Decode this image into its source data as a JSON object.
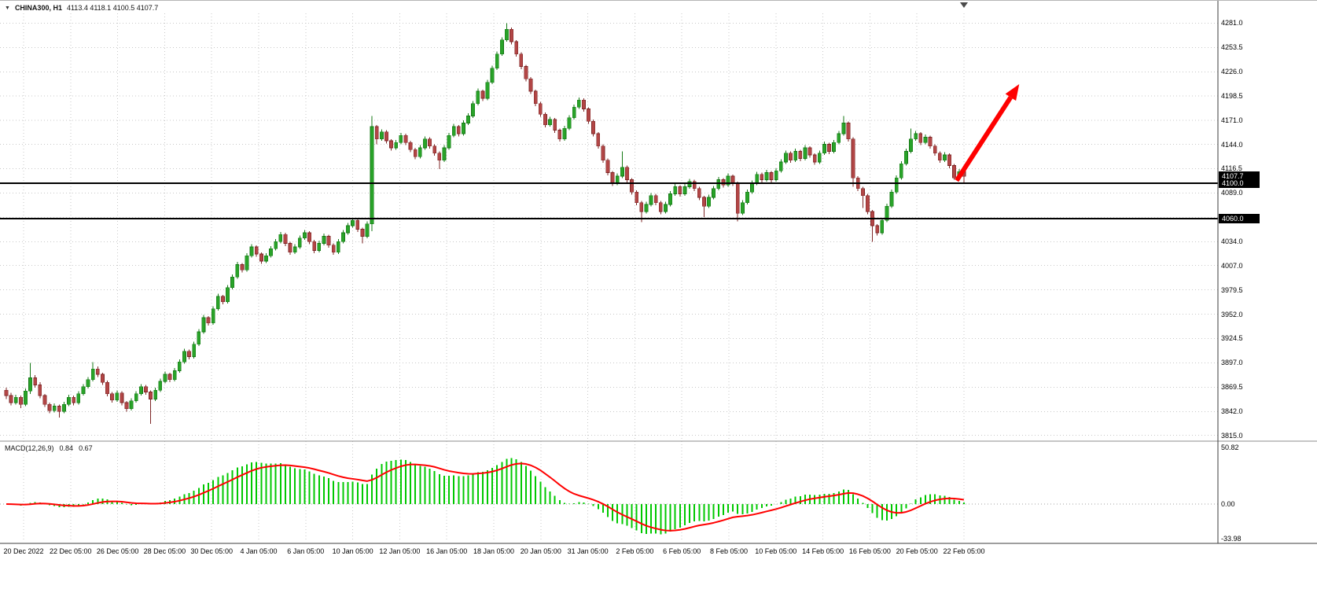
{
  "header": {
    "dropdown_icon": "▼",
    "symbol_label": "CHINA300, H1",
    "ohlc": "4113.4 4118.1 4100.5 4107.7"
  },
  "colors": {
    "background": "#ffffff",
    "grid": "#c8c8c8",
    "bull_fill": "#29a329",
    "bull_stroke": "#157815",
    "bear_fill": "#b24646",
    "bear_stroke": "#7d2626",
    "trend_line": "#000000",
    "arrow": "#fe0000",
    "macd_histogram": "#00c800",
    "macd_signal": "#ff0000",
    "badge_bg": "#000000",
    "badge_text": "#ffffff",
    "axis_text": "#000000",
    "separator": "#8e8e8e",
    "border": "#3c3c3c"
  },
  "chart_data": {
    "type": "candlestick",
    "symbol": "CHINA300",
    "timeframe": "H1",
    "title": "CHINA300, H1",
    "ohlc_display": {
      "open": 4113.4,
      "high": 4118.1,
      "low": 4100.5,
      "close": 4107.7
    },
    "price_axis": {
      "min": 3812,
      "max": 4292,
      "labels": [
        {
          "text": "4281.0",
          "value": 4281.0
        },
        {
          "text": "4253.5",
          "value": 4253.5
        },
        {
          "text": "4226.0",
          "value": 4226.0
        },
        {
          "text": "4198.5",
          "value": 4198.5
        },
        {
          "text": "4171.0",
          "value": 4171.0
        },
        {
          "text": "4144.0",
          "value": 4144.0
        },
        {
          "text": "4116.5",
          "value": 4116.5
        },
        {
          "text": "4089.0",
          "value": 4089.0
        },
        {
          "text": "4034.0",
          "value": 4034.0
        },
        {
          "text": "4007.0",
          "value": 4007.0
        },
        {
          "text": "3979.5",
          "value": 3979.5
        },
        {
          "text": "3952.0",
          "value": 3952.0
        },
        {
          "text": "3924.5",
          "value": 3924.5
        },
        {
          "text": "3897.0",
          "value": 3897.0
        },
        {
          "text": "3869.5",
          "value": 3869.5
        },
        {
          "text": "3842.0",
          "value": 3842.0
        },
        {
          "text": "3815.0",
          "value": 3815.0
        }
      ],
      "unlabeled_gridlines": [
        4061.5
      ],
      "badges": [
        {
          "text": "4107.7",
          "value": 4107.7,
          "type": "current"
        },
        {
          "text": "4100.0",
          "value": 4100.0,
          "type": "line"
        },
        {
          "text": "4060.0",
          "value": 4060.0,
          "type": "line"
        }
      ]
    },
    "horizontal_lines": [
      4100.0,
      4060.0
    ],
    "time_labels": [
      "20 Dec 2022",
      "22 Dec 05:00",
      "26 Dec 05:00",
      "28 Dec 05:00",
      "30 Dec 05:00",
      "4 Jan 05:00",
      "6 Jan 05:00",
      "10 Jan 05:00",
      "12 Jan 05:00",
      "16 Jan 05:00",
      "18 Jan 05:00",
      "20 Jan 05:00",
      "31 Jan 05:00",
      "2 Feb 05:00",
      "6 Feb 05:00",
      "8 Feb 05:00",
      "10 Feb 05:00",
      "14 Feb 05:00",
      "16 Feb 05:00",
      "20 Feb 05:00",
      "22 Feb 05:00"
    ],
    "candles": [
      [
        3866,
        3869,
        3856,
        3860
      ],
      [
        3860,
        3863,
        3849,
        3852
      ],
      [
        3852,
        3861,
        3850,
        3858
      ],
      [
        3858,
        3860,
        3846,
        3850
      ],
      [
        3850,
        3868,
        3848,
        3865
      ],
      [
        3865,
        3897,
        3862,
        3880
      ],
      [
        3880,
        3883,
        3869,
        3872
      ],
      [
        3872,
        3875,
        3857,
        3860
      ],
      [
        3860,
        3862,
        3847,
        3850
      ],
      [
        3850,
        3852,
        3840,
        3843
      ],
      [
        3843,
        3851,
        3841,
        3848
      ],
      [
        3848,
        3850,
        3835,
        3842
      ],
      [
        3842,
        3853,
        3840,
        3850
      ],
      [
        3850,
        3861,
        3848,
        3858
      ],
      [
        3858,
        3860,
        3849,
        3852
      ],
      [
        3852,
        3865,
        3850,
        3862
      ],
      [
        3862,
        3873,
        3860,
        3870
      ],
      [
        3870,
        3881,
        3868,
        3878
      ],
      [
        3878,
        3898,
        3876,
        3890
      ],
      [
        3890,
        3893,
        3881,
        3884
      ],
      [
        3884,
        3886,
        3872,
        3875
      ],
      [
        3875,
        3877,
        3859,
        3862
      ],
      [
        3862,
        3864,
        3852,
        3855
      ],
      [
        3855,
        3866,
        3853,
        3863
      ],
      [
        3863,
        3865,
        3849,
        3852
      ],
      [
        3852,
        3854,
        3842,
        3845
      ],
      [
        3845,
        3857,
        3843,
        3854
      ],
      [
        3854,
        3865,
        3852,
        3862
      ],
      [
        3862,
        3873,
        3860,
        3870
      ],
      [
        3870,
        3872,
        3861,
        3864
      ],
      [
        3864,
        3866,
        3828,
        3856
      ],
      [
        3856,
        3869,
        3854,
        3866
      ],
      [
        3866,
        3879,
        3864,
        3876
      ],
      [
        3876,
        3887,
        3874,
        3884
      ],
      [
        3884,
        3886,
        3875,
        3878
      ],
      [
        3878,
        3891,
        3876,
        3888
      ],
      [
        3888,
        3901,
        3886,
        3898
      ],
      [
        3898,
        3913,
        3896,
        3910
      ],
      [
        3910,
        3912,
        3901,
        3904
      ],
      [
        3904,
        3921,
        3902,
        3918
      ],
      [
        3918,
        3935,
        3916,
        3932
      ],
      [
        3932,
        3951,
        3930,
        3948
      ],
      [
        3948,
        3950,
        3939,
        3942
      ],
      [
        3942,
        3961,
        3940,
        3958
      ],
      [
        3958,
        3975,
        3956,
        3972
      ],
      [
        3972,
        3974,
        3963,
        3966
      ],
      [
        3966,
        3985,
        3964,
        3982
      ],
      [
        3982,
        3997,
        3980,
        3994
      ],
      [
        3994,
        4011,
        3992,
        4008
      ],
      [
        4008,
        4010,
        3999,
        4002
      ],
      [
        4002,
        4021,
        4000,
        4018
      ],
      [
        4018,
        4031,
        4016,
        4028
      ],
      [
        4028,
        4030,
        4017,
        4020
      ],
      [
        4020,
        4022,
        4009,
        4012
      ],
      [
        4012,
        4021,
        4010,
        4018
      ],
      [
        4018,
        4029,
        4016,
        4026
      ],
      [
        4026,
        4037,
        4024,
        4034
      ],
      [
        4034,
        4045,
        4032,
        4042
      ],
      [
        4042,
        4044,
        4029,
        4032
      ],
      [
        4032,
        4034,
        4019,
        4022
      ],
      [
        4022,
        4031,
        4020,
        4028
      ],
      [
        4028,
        4041,
        4026,
        4038
      ],
      [
        4038,
        4047,
        4036,
        4044
      ],
      [
        4044,
        4046,
        4031,
        4034
      ],
      [
        4034,
        4036,
        4021,
        4024
      ],
      [
        4024,
        4035,
        4022,
        4032
      ],
      [
        4032,
        4043,
        4030,
        4040
      ],
      [
        4040,
        4042,
        4027,
        4030
      ],
      [
        4030,
        4032,
        4019,
        4022
      ],
      [
        4022,
        4037,
        4020,
        4034
      ],
      [
        4034,
        4047,
        4032,
        4044
      ],
      [
        4044,
        4055,
        4042,
        4052
      ],
      [
        4052,
        4061,
        4050,
        4058
      ],
      [
        4058,
        4060,
        4045,
        4048
      ],
      [
        4048,
        4050,
        4032,
        4040
      ],
      [
        4040,
        4057,
        4038,
        4054
      ],
      [
        4054,
        4176,
        4046,
        4164
      ],
      [
        4164,
        4166,
        4144,
        4150
      ],
      [
        4150,
        4161,
        4148,
        4158
      ],
      [
        4158,
        4160,
        4145,
        4148
      ],
      [
        4148,
        4150,
        4137,
        4140
      ],
      [
        4140,
        4149,
        4138,
        4146
      ],
      [
        4146,
        4157,
        4144,
        4154
      ],
      [
        4154,
        4156,
        4143,
        4146
      ],
      [
        4146,
        4148,
        4135,
        4138
      ],
      [
        4138,
        4140,
        4127,
        4130
      ],
      [
        4130,
        4143,
        4128,
        4140
      ],
      [
        4140,
        4153,
        4138,
        4150
      ],
      [
        4150,
        4152,
        4139,
        4142
      ],
      [
        4142,
        4144,
        4131,
        4134
      ],
      [
        4134,
        4136,
        4116,
        4126
      ],
      [
        4126,
        4143,
        4124,
        4140
      ],
      [
        4140,
        4157,
        4138,
        4154
      ],
      [
        4154,
        4167,
        4152,
        4164
      ],
      [
        4164,
        4166,
        4153,
        4156
      ],
      [
        4156,
        4171,
        4154,
        4168
      ],
      [
        4168,
        4179,
        4166,
        4176
      ],
      [
        4176,
        4193,
        4174,
        4190
      ],
      [
        4190,
        4207,
        4188,
        4204
      ],
      [
        4204,
        4206,
        4193,
        4196
      ],
      [
        4196,
        4217,
        4194,
        4214
      ],
      [
        4214,
        4233,
        4212,
        4230
      ],
      [
        4230,
        4249,
        4228,
        4246
      ],
      [
        4246,
        4265,
        4244,
        4262
      ],
      [
        4262,
        4281,
        4260,
        4274
      ],
      [
        4274,
        4276,
        4257,
        4260
      ],
      [
        4260,
        4262,
        4243,
        4246
      ],
      [
        4246,
        4248,
        4229,
        4232
      ],
      [
        4232,
        4234,
        4215,
        4218
      ],
      [
        4218,
        4220,
        4201,
        4204
      ],
      [
        4204,
        4206,
        4187,
        4190
      ],
      [
        4190,
        4192,
        4175,
        4178
      ],
      [
        4178,
        4180,
        4163,
        4166
      ],
      [
        4166,
        4175,
        4164,
        4172
      ],
      [
        4172,
        4174,
        4157,
        4160
      ],
      [
        4160,
        4162,
        4147,
        4150
      ],
      [
        4150,
        4165,
        4148,
        4162
      ],
      [
        4162,
        4177,
        4160,
        4174
      ],
      [
        4174,
        4189,
        4172,
        4186
      ],
      [
        4186,
        4197,
        4184,
        4194
      ],
      [
        4194,
        4196,
        4181,
        4184
      ],
      [
        4184,
        4186,
        4167,
        4170
      ],
      [
        4170,
        4172,
        4153,
        4156
      ],
      [
        4156,
        4158,
        4139,
        4142
      ],
      [
        4142,
        4144,
        4123,
        4126
      ],
      [
        4126,
        4128,
        4109,
        4112
      ],
      [
        4112,
        4114,
        4097,
        4100
      ],
      [
        4100,
        4111,
        4098,
        4108
      ],
      [
        4108,
        4136,
        4106,
        4118
      ],
      [
        4118,
        4120,
        4101,
        4104
      ],
      [
        4104,
        4106,
        4087,
        4090
      ],
      [
        4090,
        4092,
        4075,
        4078
      ],
      [
        4078,
        4080,
        4056,
        4068
      ],
      [
        4068,
        4079,
        4066,
        4076
      ],
      [
        4076,
        4089,
        4074,
        4086
      ],
      [
        4086,
        4088,
        4075,
        4078
      ],
      [
        4078,
        4080,
        4065,
        4068
      ],
      [
        4068,
        4079,
        4066,
        4076
      ],
      [
        4076,
        4091,
        4074,
        4088
      ],
      [
        4088,
        4099,
        4086,
        4096
      ],
      [
        4096,
        4098,
        4085,
        4088
      ],
      [
        4088,
        4099,
        4086,
        4096
      ],
      [
        4096,
        4105,
        4094,
        4102
      ],
      [
        4102,
        4104,
        4091,
        4094
      ],
      [
        4094,
        4096,
        4081,
        4084
      ],
      [
        4084,
        4086,
        4062,
        4074
      ],
      [
        4074,
        4087,
        4072,
        4084
      ],
      [
        4084,
        4097,
        4082,
        4094
      ],
      [
        4094,
        4107,
        4092,
        4104
      ],
      [
        4104,
        4106,
        4095,
        4098
      ],
      [
        4098,
        4111,
        4096,
        4108
      ],
      [
        4108,
        4110,
        4097,
        4100
      ],
      [
        4100,
        4102,
        4057,
        4066
      ],
      [
        4066,
        4081,
        4064,
        4078
      ],
      [
        4078,
        4093,
        4076,
        4090
      ],
      [
        4090,
        4103,
        4088,
        4100
      ],
      [
        4100,
        4113,
        4098,
        4110
      ],
      [
        4110,
        4112,
        4101,
        4104
      ],
      [
        4104,
        4115,
        4102,
        4112
      ],
      [
        4112,
        4114,
        4101,
        4104
      ],
      [
        4104,
        4117,
        4102,
        4114
      ],
      [
        4114,
        4127,
        4112,
        4124
      ],
      [
        4124,
        4137,
        4122,
        4134
      ],
      [
        4134,
        4136,
        4123,
        4126
      ],
      [
        4126,
        4139,
        4124,
        4136
      ],
      [
        4136,
        4138,
        4125,
        4128
      ],
      [
        4128,
        4143,
        4126,
        4140
      ],
      [
        4140,
        4142,
        4129,
        4132
      ],
      [
        4132,
        4134,
        4121,
        4124
      ],
      [
        4124,
        4137,
        4122,
        4134
      ],
      [
        4134,
        4147,
        4132,
        4144
      ],
      [
        4144,
        4146,
        4133,
        4136
      ],
      [
        4136,
        4149,
        4134,
        4146
      ],
      [
        4146,
        4159,
        4144,
        4156
      ],
      [
        4156,
        4176,
        4154,
        4168
      ],
      [
        4168,
        4170,
        4147,
        4150
      ],
      [
        4150,
        4152,
        4096,
        4106
      ],
      [
        4106,
        4108,
        4091,
        4094
      ],
      [
        4094,
        4096,
        4072,
        4086
      ],
      [
        4086,
        4088,
        4065,
        4068
      ],
      [
        4068,
        4070,
        4034,
        4052
      ],
      [
        4052,
        4054,
        4041,
        4044
      ],
      [
        4044,
        4061,
        4042,
        4058
      ],
      [
        4058,
        4077,
        4056,
        4074
      ],
      [
        4074,
        4093,
        4072,
        4090
      ],
      [
        4090,
        4109,
        4088,
        4106
      ],
      [
        4106,
        4125,
        4104,
        4122
      ],
      [
        4122,
        4139,
        4120,
        4136
      ],
      [
        4136,
        4162,
        4134,
        4150
      ],
      [
        4150,
        4159,
        4148,
        4156
      ],
      [
        4156,
        4158,
        4143,
        4146
      ],
      [
        4146,
        4155,
        4144,
        4152
      ],
      [
        4152,
        4154,
        4139,
        4142
      ],
      [
        4142,
        4144,
        4131,
        4134
      ],
      [
        4134,
        4136,
        4123,
        4126
      ],
      [
        4126,
        4135,
        4124,
        4132
      ],
      [
        4132,
        4134,
        4117,
        4120
      ],
      [
        4120,
        4122,
        4104,
        4106
      ],
      [
        4106,
        4116,
        4104,
        4113
      ],
      [
        4113.4,
        4118.1,
        4100.5,
        4107.7
      ]
    ],
    "macd": {
      "label": "MACD(12,26,9)",
      "value_main": "0.84",
      "value_signal": "0.67",
      "fast": 12,
      "slow": 26,
      "signal": 9,
      "derived": "histogram and signal line are computed from candle closes with EMA(fast)-EMA(slow) and EMA(signal)",
      "axis_labels": [
        {
          "text": "50.82",
          "value": 50.82
        },
        {
          "text": "0.00",
          "value": 0
        },
        {
          "text": "-33.98",
          "value": -33.98
        }
      ]
    },
    "arrow_annotation": {
      "from": {
        "bar": 197.5,
        "price": 4103
      },
      "to": {
        "bar": 210.5,
        "price": 4212
      }
    }
  }
}
